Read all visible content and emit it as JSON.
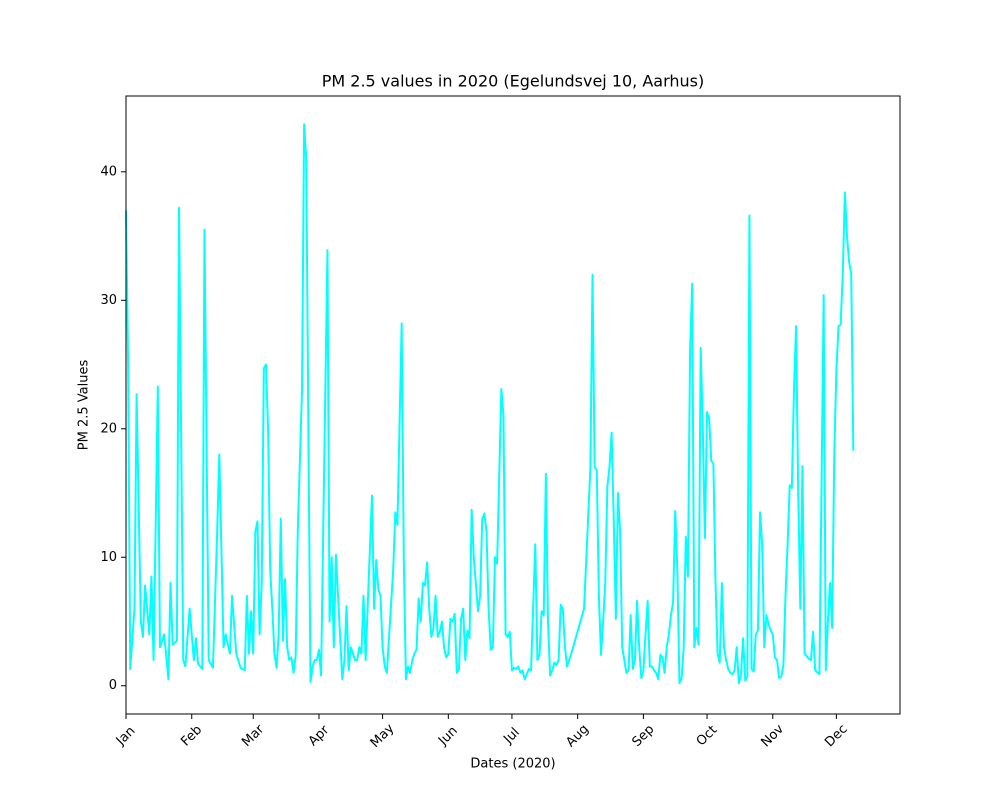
{
  "chart_data": {
    "type": "line",
    "title": "PM 2.5 values in 2020 (Egelundsvej 10, Aarhus)",
    "x_label": "Dates (2020)",
    "y_label": "PM 2.5 Values",
    "xlim": [
      0,
      365
    ],
    "ylim": [
      -2.2,
      45.9
    ],
    "xticks": [
      {
        "value": 0,
        "label": "Jan"
      },
      {
        "value": 31,
        "label": "Feb"
      },
      {
        "value": 60,
        "label": "Mar"
      },
      {
        "value": 91,
        "label": "Apr"
      },
      {
        "value": 121,
        "label": "May"
      },
      {
        "value": 152,
        "label": "Jun"
      },
      {
        "value": 182,
        "label": "Jul"
      },
      {
        "value": 213,
        "label": "Aug"
      },
      {
        "value": 244,
        "label": "Sep"
      },
      {
        "value": 274,
        "label": "Oct"
      },
      {
        "value": 305,
        "label": "Nov"
      },
      {
        "value": 335,
        "label": "Dec"
      }
    ],
    "yticks": [
      0,
      10,
      20,
      30,
      40
    ],
    "grid": false,
    "series": [
      {
        "color": "#00ffff",
        "x": [
          0,
          1,
          2,
          4,
          5,
          7,
          8,
          9,
          11,
          12,
          13,
          15,
          16,
          18,
          20,
          21,
          22,
          24,
          25,
          27,
          28,
          30,
          32,
          33,
          34,
          36,
          37,
          39,
          41,
          43,
          44,
          46,
          47,
          49,
          50,
          52,
          54,
          56,
          57,
          58,
          59,
          60,
          61,
          62,
          63,
          64,
          65,
          66,
          67,
          68,
          69,
          70,
          71,
          72,
          73,
          74,
          75,
          76,
          77,
          78,
          79,
          80,
          81,
          83,
          84,
          85,
          86,
          87,
          88,
          89,
          90,
          91,
          92,
          93,
          95,
          96,
          97,
          98,
          99,
          100,
          102,
          103,
          104,
          105,
          106,
          108,
          109,
          110,
          111,
          112,
          113,
          116,
          117,
          118,
          119,
          120,
          121,
          122,
          123,
          126,
          127,
          128,
          130,
          131,
          132,
          133,
          134,
          135,
          136,
          137,
          138,
          139,
          140,
          141,
          142,
          143,
          144,
          145,
          146,
          147,
          148,
          149,
          150,
          151,
          152,
          153,
          154,
          155,
          156,
          157,
          158,
          159,
          160,
          161,
          162,
          163,
          164,
          166,
          167,
          168,
          169,
          170,
          171,
          172,
          173,
          174,
          175,
          177,
          178,
          179,
          180,
          181,
          182,
          183,
          184,
          185,
          186,
          187,
          188,
          189,
          190,
          191,
          193,
          194,
          195,
          196,
          197,
          198,
          199,
          200,
          201,
          202,
          203,
          204,
          205,
          206,
          207,
          208,
          210,
          216,
          219,
          220,
          221,
          222,
          223,
          224,
          225,
          226,
          227,
          228,
          229,
          230,
          231,
          232,
          233,
          234,
          235,
          236,
          237,
          238,
          239,
          240,
          241,
          242,
          243,
          244,
          245,
          246,
          247,
          248,
          249,
          250,
          251,
          252,
          253,
          254,
          255,
          256,
          257,
          258,
          259,
          260,
          261,
          262,
          263,
          264,
          265,
          266,
          267,
          268,
          269,
          270,
          271,
          272,
          273,
          274,
          275,
          276,
          277,
          278,
          279,
          280,
          281,
          282,
          283,
          284,
          285,
          286,
          287,
          288,
          289,
          290,
          291,
          292,
          293,
          294,
          295,
          296,
          297,
          298,
          299,
          300,
          301,
          302,
          303,
          304,
          305,
          306,
          307,
          308,
          309,
          310,
          311,
          312,
          313,
          314,
          315,
          316,
          317,
          318,
          319,
          320,
          321,
          322,
          323,
          324,
          325,
          327,
          329,
          330,
          331,
          332,
          333,
          334,
          335,
          336,
          337,
          338,
          339,
          340,
          341,
          342,
          343
        ],
        "values": [
          37,
          25,
          1.3,
          6,
          22.7,
          5,
          3.8,
          7.8,
          4,
          8.5,
          2,
          23.3,
          3,
          4,
          0.5,
          8,
          3.2,
          3.5,
          37.2,
          2,
          1.5,
          6,
          2,
          3.7,
          1.7,
          1.3,
          35.5,
          2,
          1.4,
          12,
          18,
          3,
          4,
          2.5,
          7,
          2.5,
          1.4,
          1.2,
          7,
          2.5,
          5.8,
          2.5,
          12,
          12.8,
          4,
          8,
          24.7,
          25,
          20,
          9,
          6,
          2.5,
          1.4,
          4,
          13,
          3.5,
          8.3,
          3,
          2,
          2.2,
          1,
          2.3,
          12,
          23,
          43.7,
          41,
          20,
          0.3,
          1.5,
          2,
          2,
          2.8,
          0.8,
          12,
          33.9,
          5,
          10,
          3,
          10.2,
          7,
          0.5,
          2,
          6.2,
          1.2,
          3,
          2,
          2,
          3,
          2.5,
          7,
          2,
          14.8,
          6,
          9.8,
          7.5,
          7,
          3,
          1.5,
          1,
          9,
          13.5,
          12.5,
          28.2,
          10,
          0.5,
          1.5,
          1,
          2,
          2.5,
          2.8,
          6.8,
          5,
          8,
          7.8,
          9.6,
          6,
          3.8,
          4.5,
          7,
          3.8,
          4.2,
          5,
          3,
          2.2,
          2.5,
          5.2,
          5,
          5.6,
          1,
          1.3,
          5.2,
          6,
          2,
          4.3,
          3.7,
          13.7,
          10,
          5.8,
          7,
          13,
          13.4,
          12,
          6,
          2.8,
          3,
          10,
          9.5,
          23.1,
          21,
          4,
          3.8,
          4.2,
          1.2,
          1.4,
          1.3,
          1.5,
          1,
          1.2,
          0.5,
          0.9,
          1.3,
          1.2,
          11,
          2,
          2.4,
          5.8,
          5.5,
          16.5,
          5,
          0.8,
          1.2,
          1.8,
          1.6,
          2,
          6.3,
          6,
          3,
          1.5,
          2.5,
          6,
          17,
          32,
          17,
          16.8,
          7,
          2.4,
          5,
          8,
          15.5,
          17,
          19.7,
          13,
          5.2,
          15,
          12,
          3,
          2,
          1,
          1.2,
          5.5,
          1.3,
          2,
          6.6,
          3,
          0.6,
          1.2,
          4,
          6.6,
          1.5,
          1.5,
          1.2,
          1,
          0.5,
          2.4,
          2.2,
          1,
          3,
          4,
          5.5,
          6.5,
          13.6,
          9,
          0.2,
          0.6,
          3,
          11.6,
          8.5,
          26,
          31.3,
          3,
          4.5,
          3.2,
          26.3,
          20,
          11.5,
          21.3,
          20.8,
          17.5,
          17.3,
          8,
          2.5,
          1.8,
          8,
          3,
          2,
          1.3,
          1,
          0.9,
          1.2,
          3,
          0.2,
          0.8,
          3.7,
          0.4,
          0.7,
          36.6,
          1.3,
          1.1,
          4,
          4.3,
          13.5,
          11,
          3,
          5.5,
          4.8,
          4.3,
          4,
          2.2,
          2,
          0.6,
          0.7,
          1.6,
          7,
          11,
          15.6,
          15.4,
          23,
          28,
          15,
          6,
          17.1,
          2.5,
          2.3,
          2.1,
          2,
          4.2,
          1.2,
          0.9,
          30.4,
          1.2,
          5,
          8,
          4.5,
          18,
          24.5,
          28,
          28.1,
          32,
          38.4,
          35,
          33,
          32,
          18.3
        ]
      }
    ]
  }
}
